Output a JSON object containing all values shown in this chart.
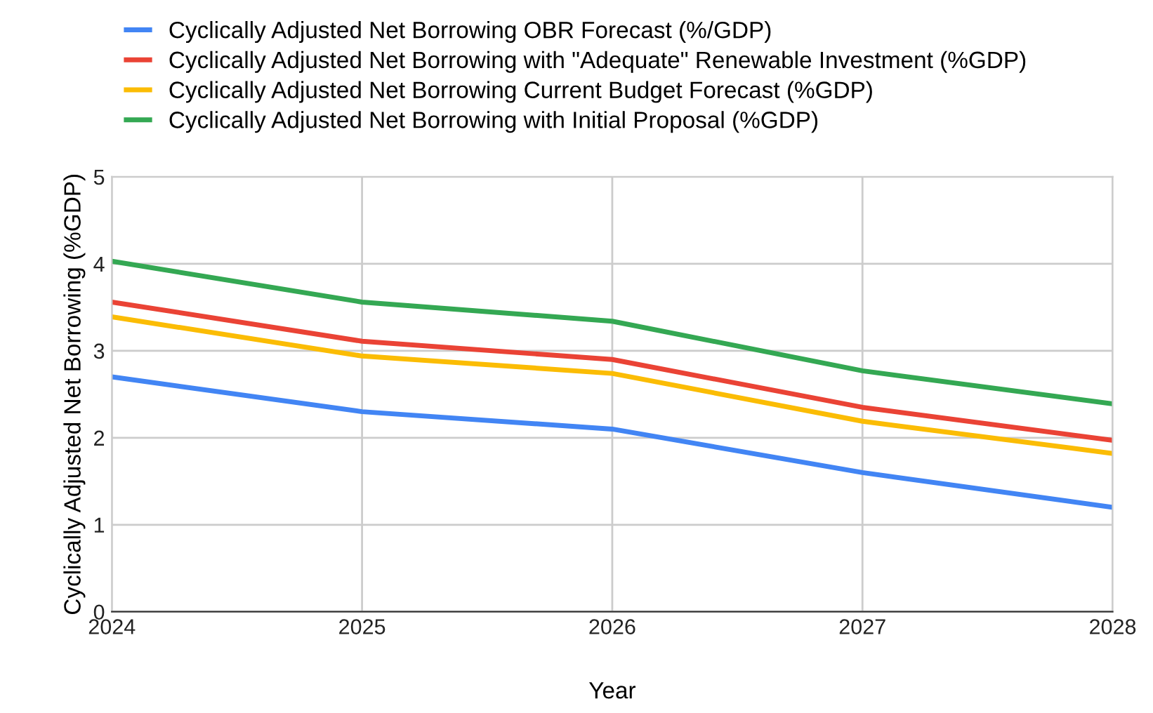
{
  "chart_data": {
    "type": "line",
    "xlabel": "Year",
    "ylabel": "Cyclically Adjusted Net Borrowing (%GDP)",
    "x": [
      2024,
      2025,
      2026,
      2027,
      2028
    ],
    "series": [
      {
        "name": "Cyclically Adjusted Net Borrowing OBR Forecast (%/GDP)",
        "color": "#4285f4",
        "values": [
          2.7,
          2.3,
          2.1,
          1.6,
          1.2
        ]
      },
      {
        "name": "Cyclically Adjusted Net Borrowing with \"Adequate\" Renewable Investment (%GDP)",
        "color": "#ea4335",
        "values": [
          3.56,
          3.11,
          2.9,
          2.35,
          1.97
        ]
      },
      {
        "name": "Cyclically Adjusted Net Borrowing Current Budget Forecast (%GDP)",
        "color": "#fbbc04",
        "values": [
          3.39,
          2.94,
          2.74,
          2.19,
          1.82
        ]
      },
      {
        "name": "Cyclically Adjusted Net Borrowing with Initial Proposal (%GDP)",
        "color": "#34a853",
        "values": [
          4.03,
          3.56,
          3.34,
          2.77,
          2.39
        ]
      }
    ],
    "xlim": [
      2024,
      2028
    ],
    "xticks": [
      2024,
      2025,
      2026,
      2027,
      2028
    ],
    "ylim": [
      0,
      5
    ],
    "yticks": [
      0,
      1,
      2,
      3,
      4,
      5
    ],
    "grid": true,
    "legend": "top",
    "marker": "none",
    "line_style": "solid"
  }
}
